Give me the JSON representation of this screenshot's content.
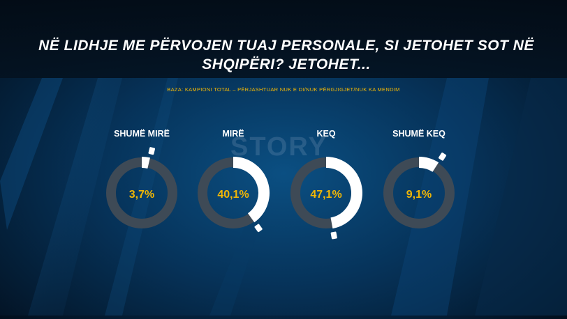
{
  "title": "NË LIDHJE ME PËRVOJEN TUAJ PERSONALE, SI JETOHET SOT NË SHQIPËRI? JETOHET...",
  "base_note": "BAZA: KAMPIONI TOTAL – PËRJASHTUAR NUK E DI/NUK PËRGJIGJET/NUK KA MENDIM",
  "watermark": "STORY",
  "colors": {
    "ring_track": "#3e4a56",
    "ring_fill": "#ffffff",
    "value_text": "#f2b705",
    "label_text": "#ffffff"
  },
  "chart_data": {
    "type": "pie",
    "subtype": "donut-gauges",
    "categories": [
      "SHUMË MIRË",
      "MIRË",
      "KEQ",
      "SHUMË KEQ"
    ],
    "values": [
      3.7,
      40.1,
      47.1,
      9.1
    ],
    "value_labels": [
      "3,7%",
      "40,1%",
      "47,1%",
      "9,1%"
    ],
    "unit": "%"
  }
}
